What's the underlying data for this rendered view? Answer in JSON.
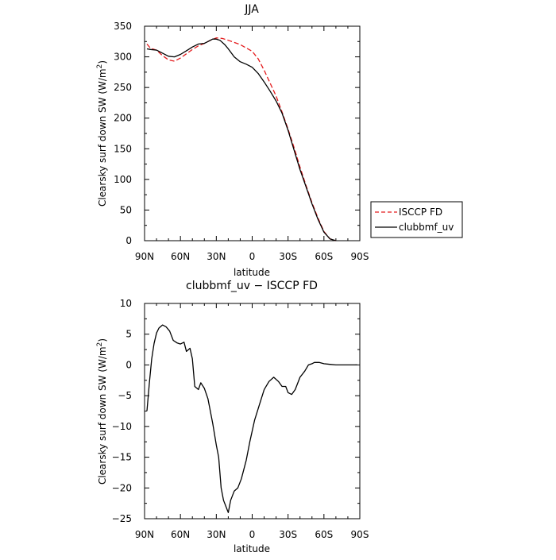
{
  "chart_data": [
    {
      "type": "line",
      "title": "JJA",
      "xlabel": "latitude",
      "ylabel": "Clearsky surf down SW (W/m",
      "ylabel_sup": "2",
      "ylabel_close": ")",
      "xlim": [
        90,
        -90
      ],
      "ylim": [
        0,
        350
      ],
      "x_ticks": [
        {
          "value": 90,
          "label": "90N"
        },
        {
          "value": 60,
          "label": "60N"
        },
        {
          "value": 30,
          "label": "30N"
        },
        {
          "value": 0,
          "label": "0"
        },
        {
          "value": -30,
          "label": "30S"
        },
        {
          "value": -60,
          "label": "60S"
        },
        {
          "value": -90,
          "label": "90S"
        }
      ],
      "y_ticks": [
        0,
        50,
        100,
        150,
        200,
        250,
        300,
        350
      ],
      "legend_position": "right",
      "series": [
        {
          "name": "ISCCP FD",
          "color": "#e41a1c",
          "dash": "dashed",
          "points": [
            [
              88,
              321
            ],
            [
              85,
              314
            ],
            [
              80,
              311
            ],
            [
              75,
              302
            ],
            [
              70,
              295
            ],
            [
              65,
              293
            ],
            [
              60,
              298
            ],
            [
              55,
              305
            ],
            [
              50,
              312
            ],
            [
              45,
              318
            ],
            [
              40,
              322
            ],
            [
              35,
              327
            ],
            [
              30,
              331
            ],
            [
              25,
              330
            ],
            [
              20,
              327
            ],
            [
              10,
              320
            ],
            [
              0,
              309
            ],
            [
              -5,
              297
            ],
            [
              -10,
              278
            ],
            [
              -15,
              257
            ],
            [
              -20,
              236
            ],
            [
              -25,
              210
            ],
            [
              -30,
              182
            ],
            [
              -35,
              152
            ],
            [
              -40,
              120
            ],
            [
              -45,
              90
            ],
            [
              -50,
              62
            ],
            [
              -55,
              37
            ],
            [
              -60,
              15
            ],
            [
              -65,
              3
            ],
            [
              -70,
              0
            ]
          ]
        },
        {
          "name": "clubbmf_uv",
          "color": "#000000",
          "dash": "solid",
          "points": [
            [
              88,
              313
            ],
            [
              85,
              312
            ],
            [
              80,
              311
            ],
            [
              75,
              306
            ],
            [
              70,
              301
            ],
            [
              65,
              300
            ],
            [
              60,
              304
            ],
            [
              55,
              310
            ],
            [
              50,
              316
            ],
            [
              45,
              321
            ],
            [
              40,
              322
            ],
            [
              37,
              325
            ],
            [
              33,
              329
            ],
            [
              30,
              329
            ],
            [
              27,
              327
            ],
            [
              23,
              320
            ],
            [
              20,
              313
            ],
            [
              15,
              300
            ],
            [
              10,
              292
            ],
            [
              5,
              288
            ],
            [
              0,
              283
            ],
            [
              -5,
              273
            ],
            [
              -10,
              259
            ],
            [
              -15,
              244
            ],
            [
              -20,
              228
            ],
            [
              -25,
              208
            ],
            [
              -30,
              180
            ],
            [
              -35,
              148
            ],
            [
              -40,
              116
            ],
            [
              -45,
              88
            ],
            [
              -50,
              60
            ],
            [
              -55,
              35
            ],
            [
              -60,
              14
            ],
            [
              -65,
              3
            ],
            [
              -70,
              0
            ]
          ]
        }
      ]
    },
    {
      "type": "line",
      "title": "clubbmf_uv − ISCCP FD",
      "xlabel": "latitude",
      "ylabel": "Clearsky surf down SW (W/m",
      "ylabel_sup": "2",
      "ylabel_close": ")",
      "xlim": [
        90,
        -90
      ],
      "ylim": [
        -25,
        10
      ],
      "x_ticks": [
        {
          "value": 90,
          "label": "90N"
        },
        {
          "value": 60,
          "label": "60N"
        },
        {
          "value": 30,
          "label": "30N"
        },
        {
          "value": 0,
          "label": "0"
        },
        {
          "value": -30,
          "label": "30S"
        },
        {
          "value": -60,
          "label": "60S"
        },
        {
          "value": -90,
          "label": "90S"
        }
      ],
      "y_ticks": [
        -25,
        -20,
        -15,
        -10,
        -5,
        0,
        5,
        10
      ],
      "series": [
        {
          "color": "#000000",
          "dash": "solid",
          "points": [
            [
              88,
              -7.5
            ],
            [
              86,
              -3
            ],
            [
              84,
              1
            ],
            [
              82,
              3.5
            ],
            [
              80,
              5.2
            ],
            [
              78,
              6
            ],
            [
              75,
              6.5
            ],
            [
              72,
              6.2
            ],
            [
              69,
              5.5
            ],
            [
              66,
              4
            ],
            [
              63,
              3.6
            ],
            [
              60,
              3.4
            ],
            [
              57,
              3.7
            ],
            [
              55,
              2.2
            ],
            [
              52,
              2.7
            ],
            [
              50,
              1.0
            ],
            [
              48,
              -3.5
            ],
            [
              45,
              -4.0
            ],
            [
              43,
              -2.9
            ],
            [
              40,
              -3.8
            ],
            [
              37,
              -5.5
            ],
            [
              33,
              -9.5
            ],
            [
              30,
              -13
            ],
            [
              28,
              -15
            ],
            [
              26,
              -20
            ],
            [
              24,
              -22
            ],
            [
              22,
              -23
            ],
            [
              20,
              -24
            ],
            [
              18,
              -22
            ],
            [
              15,
              -20.5
            ],
            [
              12,
              -20
            ],
            [
              9,
              -18.5
            ],
            [
              5,
              -15.5
            ],
            [
              2,
              -12.5
            ],
            [
              -2,
              -9
            ],
            [
              -6,
              -6.5
            ],
            [
              -10,
              -4
            ],
            [
              -14,
              -2.7
            ],
            [
              -18,
              -2.0
            ],
            [
              -22,
              -2.7
            ],
            [
              -25,
              -3.5
            ],
            [
              -28,
              -3.5
            ],
            [
              -30,
              -4.5
            ],
            [
              -33,
              -4.8
            ],
            [
              -36,
              -4.0
            ],
            [
              -40,
              -2.0
            ],
            [
              -44,
              -1.0
            ],
            [
              -47,
              0.0
            ],
            [
              -50,
              0.2
            ],
            [
              -52,
              0.4
            ],
            [
              -56,
              0.4
            ],
            [
              -60,
              0.2
            ],
            [
              -65,
              0.1
            ],
            [
              -70,
              0.0
            ],
            [
              -80,
              0.0
            ],
            [
              -88,
              0.0
            ]
          ]
        }
      ]
    }
  ]
}
